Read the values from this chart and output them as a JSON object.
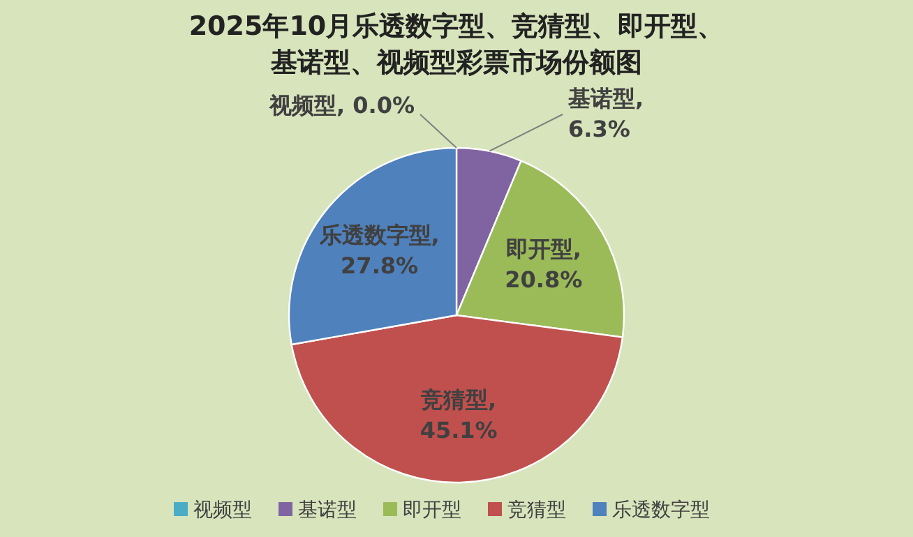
{
  "chart_data": {
    "type": "pie",
    "title": "2025年10月乐透数字型、竞猜型、即开型、基诺型、视频型彩票市场份额图",
    "categories": [
      "乐透数字型",
      "竞猜型",
      "即开型",
      "基诺型",
      "视频型"
    ],
    "values": [
      27.8,
      45.1,
      20.8,
      6.3,
      0.0
    ],
    "value_labels": [
      "乐透数字型, 27.8%",
      "竞猜型, 45.1%",
      "即开型, 20.8%",
      "基诺型, 6.3%",
      "视频型, 0.0%"
    ],
    "colors": [
      "#4f81bd",
      "#c0504d",
      "#9bbb59",
      "#8064a2",
      "#4bacc6"
    ],
    "legend": "bottom"
  }
}
